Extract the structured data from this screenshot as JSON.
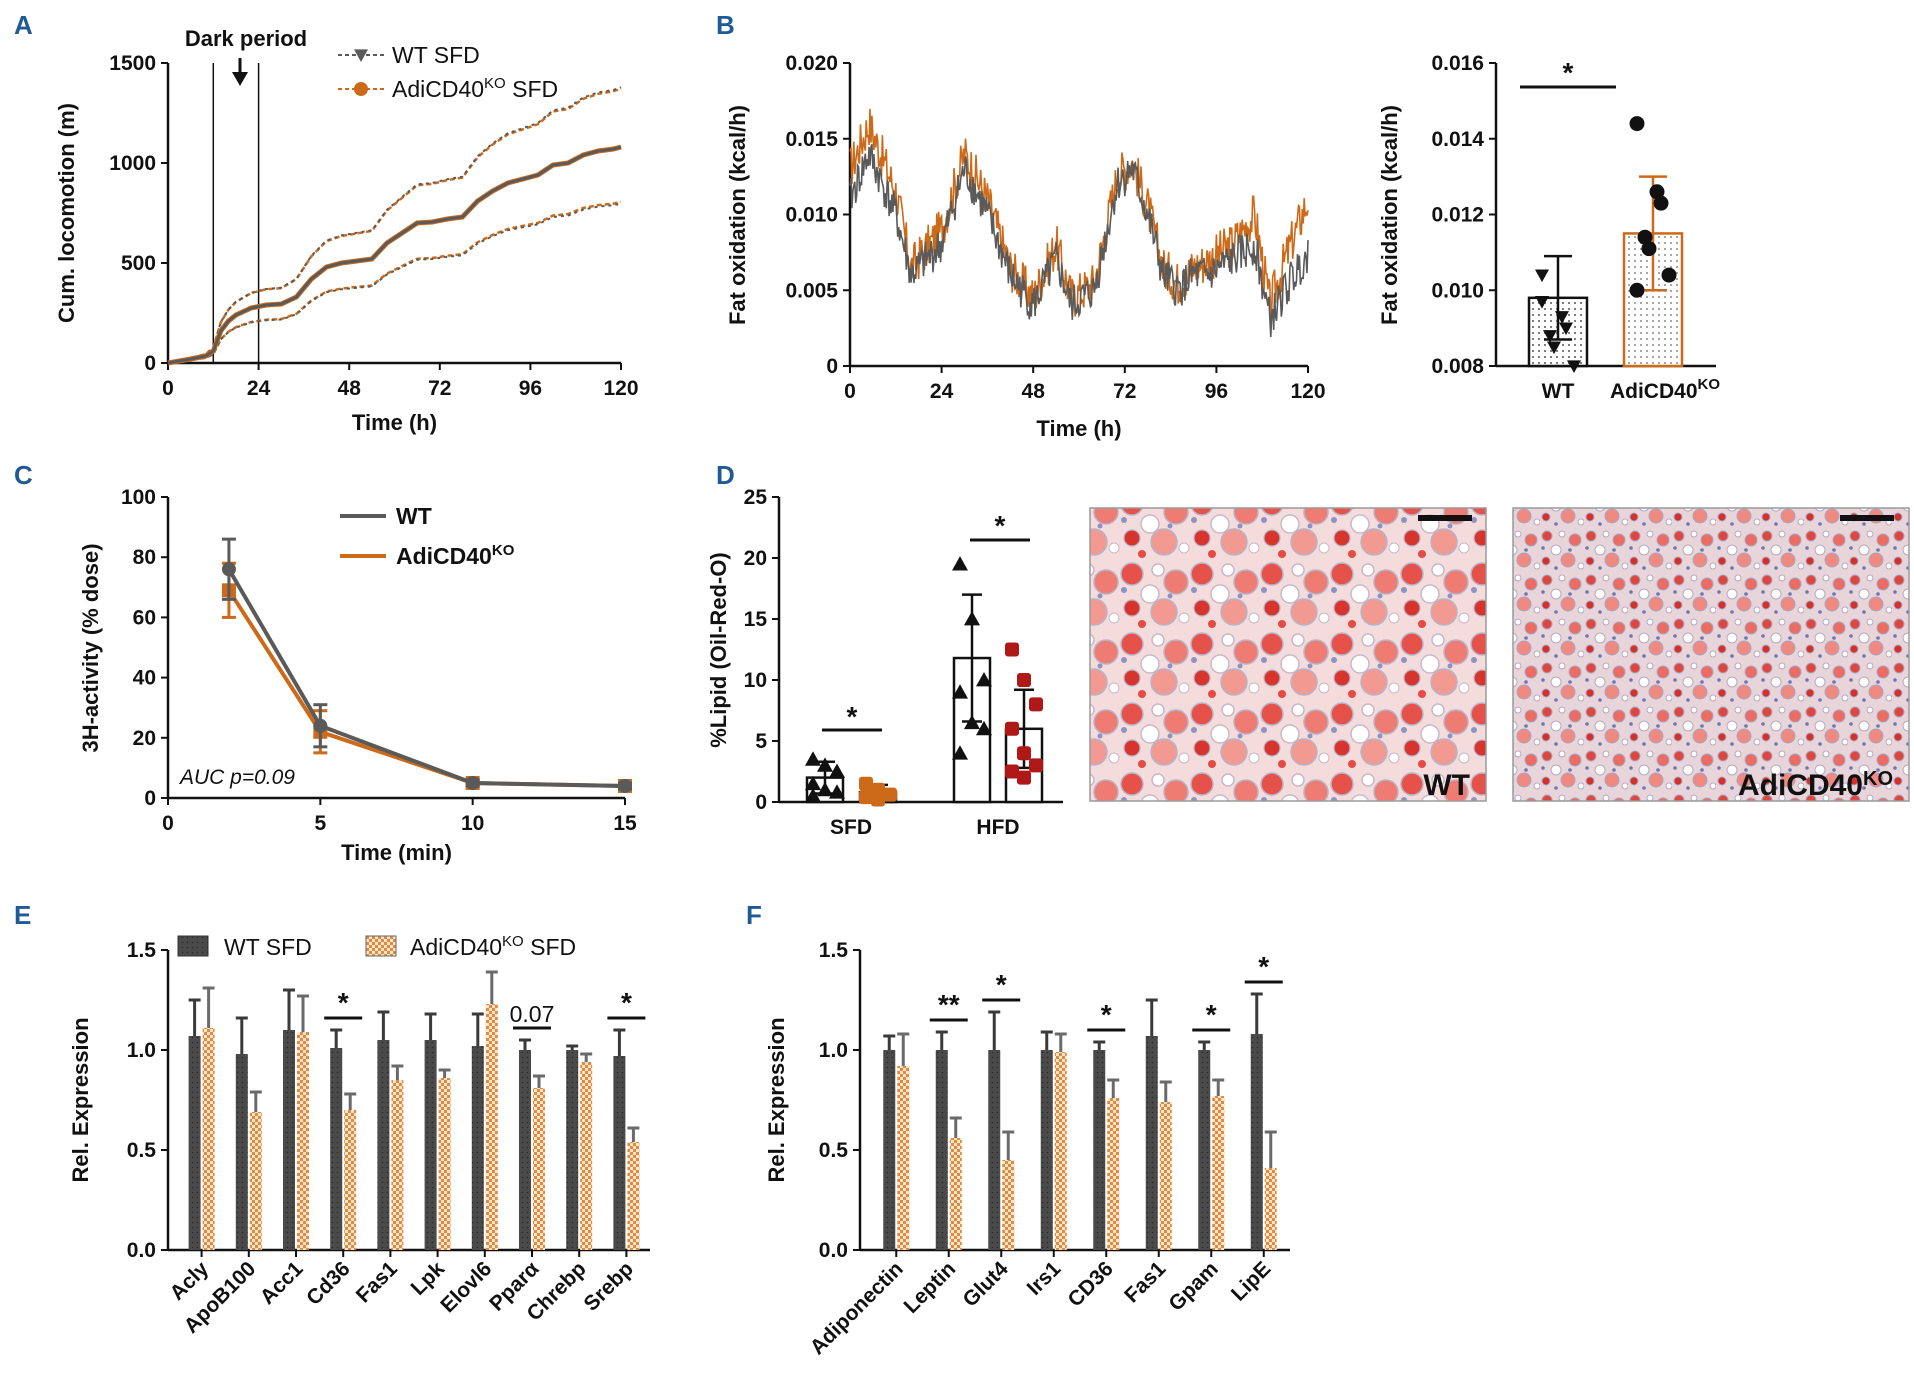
{
  "colors": {
    "wt": "#5a5a5a",
    "ko": "#cc6a1a",
    "ko_hfd": "#b01818",
    "dark": "#111111",
    "panel_label": "#1f5a96"
  },
  "panels": {
    "A": "A",
    "B": "B",
    "C": "C",
    "D": "D",
    "E": "E",
    "F": "F"
  },
  "chart_data": [
    {
      "id": "A",
      "type": "line",
      "title": "",
      "annotation": "Dark period",
      "xlabel": "Time  (h)",
      "ylabel": "Cum. locomotion  (m)",
      "xlim": [
        0,
        120
      ],
      "ylim": [
        0,
        1500
      ],
      "xticks": [
        "0",
        "24",
        "48",
        "72",
        "96",
        "120"
      ],
      "yticks": [
        "0",
        "500",
        "1000",
        "1500"
      ],
      "vlines": [
        12,
        24
      ],
      "x": [
        0,
        6,
        10,
        12,
        14,
        16,
        18,
        22,
        26,
        30,
        34,
        38,
        42,
        46,
        50,
        54,
        58,
        62,
        66,
        70,
        74,
        78,
        82,
        86,
        90,
        94,
        98,
        102,
        106,
        110,
        114,
        118,
        120
      ],
      "series": [
        {
          "name": "WT SFD",
          "marker": "triangle-down",
          "values": [
            0,
            20,
            35,
            60,
            160,
            210,
            240,
            275,
            290,
            295,
            330,
            420,
            480,
            500,
            510,
            520,
            600,
            650,
            700,
            705,
            720,
            730,
            810,
            860,
            900,
            920,
            940,
            990,
            1000,
            1040,
            1060,
            1070,
            1080
          ]
        },
        {
          "name": "AdiCD40KO SFD",
          "marker": "circle",
          "values": [
            0,
            20,
            35,
            60,
            160,
            210,
            240,
            275,
            290,
            295,
            330,
            420,
            480,
            500,
            510,
            520,
            600,
            650,
            700,
            705,
            720,
            730,
            810,
            860,
            900,
            920,
            940,
            990,
            1000,
            1040,
            1060,
            1070,
            1080
          ]
        }
      ],
      "legend": [
        {
          "label": "WT SFD",
          "sup": ""
        },
        {
          "label": "AdiCD40",
          "sup": "KO",
          "suffix": " SFD"
        }
      ]
    },
    {
      "id": "B1",
      "type": "line",
      "xlabel": "Time (h)",
      "ylabel": "Fat oxidation (kcal/h)",
      "xlim": [
        0,
        120
      ],
      "ylim": [
        0,
        0.02
      ],
      "xticks": [
        "0",
        "24",
        "48",
        "72",
        "96",
        "120"
      ],
      "yticks": [
        "0",
        "0.005",
        "0.010",
        "0.015",
        "0.020"
      ],
      "knots_x": [
        0,
        5,
        12,
        16,
        24,
        30,
        36,
        42,
        48,
        54,
        58,
        64,
        70,
        74,
        78,
        82,
        86,
        90,
        94,
        100,
        106,
        110,
        114,
        120
      ],
      "series": [
        {
          "name": "WT",
          "values": [
            0.011,
            0.014,
            0.01,
            0.006,
            0.008,
            0.013,
            0.01,
            0.006,
            0.004,
            0.007,
            0.004,
            0.005,
            0.012,
            0.013,
            0.01,
            0.006,
            0.005,
            0.006,
            0.006,
            0.007,
            0.008,
            0.003,
            0.005,
            0.0075
          ]
        },
        {
          "name": "AdiCD40KO",
          "values": [
            0.013,
            0.016,
            0.0115,
            0.0065,
            0.009,
            0.014,
            0.011,
            0.0065,
            0.0045,
            0.008,
            0.0045,
            0.0055,
            0.0125,
            0.0135,
            0.0105,
            0.0065,
            0.0055,
            0.0065,
            0.007,
            0.008,
            0.01,
            0.004,
            0.007,
            0.011
          ]
        }
      ]
    },
    {
      "id": "B2",
      "type": "bar",
      "ylabel": "Fat oxidation (kcal/h)",
      "ylim": [
        0.008,
        0.016
      ],
      "yticks": [
        "0.008",
        "0.010",
        "0.012",
        "0.014",
        "0.016"
      ],
      "categories": [
        "WT",
        "AdiCD40"
      ],
      "cat_sup": [
        "",
        "KO"
      ],
      "values": [
        0.0098,
        0.0115
      ],
      "errors": [
        0.0011,
        0.0015
      ],
      "points": [
        [
          0.0097,
          0.0093,
          0.009,
          0.0088,
          0.0085,
          0.008,
          0.0104
        ],
        [
          0.0144,
          0.0126,
          0.0123,
          0.0114,
          0.0111,
          0.0104,
          0.01
        ]
      ],
      "significance": "*"
    },
    {
      "id": "C",
      "type": "line",
      "xlabel": "Time (min)",
      "ylabel": "3H-activity (% dose)",
      "xlim": [
        0,
        15
      ],
      "ylim": [
        0,
        100
      ],
      "xticks": [
        "0",
        "5",
        "10",
        "15"
      ],
      "yticks": [
        "0",
        "20",
        "40",
        "60",
        "80",
        "100"
      ],
      "x": [
        2,
        5,
        10,
        15
      ],
      "series": [
        {
          "name": "WT",
          "values": [
            76,
            24,
            5,
            4
          ],
          "errors": [
            10,
            7,
            1,
            1
          ]
        },
        {
          "name": "AdiCD40KO",
          "values": [
            69,
            22,
            5,
            4
          ],
          "errors": [
            9,
            7,
            1,
            1
          ]
        }
      ],
      "legend": [
        {
          "label": "WT",
          "sup": ""
        },
        {
          "label": "AdiCD40",
          "sup": "KO"
        }
      ],
      "annotation": "AUC p=0.09"
    },
    {
      "id": "D",
      "type": "bar",
      "ylabel": "%Lipid (Oil-Red-O)",
      "ylim": [
        0,
        25
      ],
      "yticks": [
        "0",
        "5",
        "10",
        "15",
        "20",
        "25"
      ],
      "categories": [
        "SFD",
        "HFD"
      ],
      "series": [
        {
          "name": "WT",
          "values": [
            2.0,
            11.8
          ],
          "errors": [
            1.3,
            5.2
          ],
          "points": [
            [
              3.5,
              3.0,
              2.5,
              1.5,
              1.0,
              0.8,
              0.5
            ],
            [
              19.5,
              15.0,
              10.0,
              9.0,
              6.5,
              6.0,
              4.0
            ]
          ]
        },
        {
          "name": "AdiCD40KO",
          "values": [
            0.8,
            6.0
          ],
          "errors": [
            0.6,
            3.2
          ],
          "points": [
            [
              1.5,
              1.0,
              0.6,
              0.4,
              0.2
            ],
            [
              12.5,
              10.0,
              8.0,
              6.0,
              4.0,
              3.0,
              2.5,
              2.0
            ]
          ]
        }
      ],
      "significance": [
        "*",
        "*"
      ],
      "images": [
        {
          "label": "WT",
          "sup": ""
        },
        {
          "label": "AdiCD40",
          "sup": "KO"
        }
      ]
    },
    {
      "id": "E",
      "type": "bar",
      "ylabel": "Rel. Expression",
      "ylim": [
        0,
        1.5
      ],
      "yticks": [
        "0.0",
        "0.5",
        "1.0",
        "1.5"
      ],
      "categories": [
        "Acly",
        "ApoB100",
        "Acc1",
        "Cd36",
        "Fas1",
        "Lpk",
        "Elovl6",
        "Pparα",
        "Chrebp",
        "Srebp"
      ],
      "series": [
        {
          "name": "WT SFD",
          "values": [
            1.07,
            0.98,
            1.1,
            1.01,
            1.05,
            1.05,
            1.02,
            1.0,
            1.0,
            0.97
          ],
          "errors": [
            0.18,
            0.18,
            0.2,
            0.09,
            0.14,
            0.13,
            0.16,
            0.05,
            0.02,
            0.13
          ]
        },
        {
          "name": "AdiCD40KO SFD",
          "values": [
            1.11,
            0.69,
            1.09,
            0.7,
            0.85,
            0.86,
            1.23,
            0.81,
            0.94,
            0.54
          ],
          "errors": [
            0.2,
            0.1,
            0.18,
            0.08,
            0.07,
            0.04,
            0.16,
            0.06,
            0.04,
            0.07
          ]
        }
      ],
      "legend": [
        {
          "label": "WT SFD",
          "sup": ""
        },
        {
          "label": "AdiCD40",
          "sup": "KO",
          "suffix": " SFD"
        }
      ],
      "significance": [
        {
          "category": "Cd36",
          "text": "*"
        },
        {
          "category": "Pparα",
          "text": "0.07"
        },
        {
          "category": "Srebp",
          "text": "*"
        }
      ]
    },
    {
      "id": "F",
      "type": "bar",
      "ylabel": "Rel. Expression",
      "ylim": [
        0,
        1.5
      ],
      "yticks": [
        "0.0",
        "0.5",
        "1.0",
        "1.5"
      ],
      "categories": [
        "Adiponectin",
        "Leptin",
        "Glut4",
        "Irs1",
        "CD36",
        "Fas1",
        "Gpam",
        "LipE"
      ],
      "series": [
        {
          "name": "WT SFD",
          "values": [
            1.0,
            1.0,
            1.0,
            1.0,
            1.0,
            1.07,
            1.0,
            1.08
          ],
          "errors": [
            0.07,
            0.09,
            0.19,
            0.09,
            0.04,
            0.18,
            0.04,
            0.2
          ]
        },
        {
          "name": "AdiCD40KO SFD",
          "values": [
            0.92,
            0.56,
            0.45,
            0.99,
            0.76,
            0.74,
            0.77,
            0.41
          ],
          "errors": [
            0.16,
            0.1,
            0.14,
            0.09,
            0.09,
            0.1,
            0.08,
            0.18
          ]
        }
      ],
      "significance": [
        {
          "category": "Leptin",
          "text": "**"
        },
        {
          "category": "Glut4",
          "text": "*"
        },
        {
          "category": "CD36",
          "text": "*"
        },
        {
          "category": "Gpam",
          "text": "*"
        },
        {
          "category": "LipE",
          "text": "*"
        }
      ]
    }
  ]
}
